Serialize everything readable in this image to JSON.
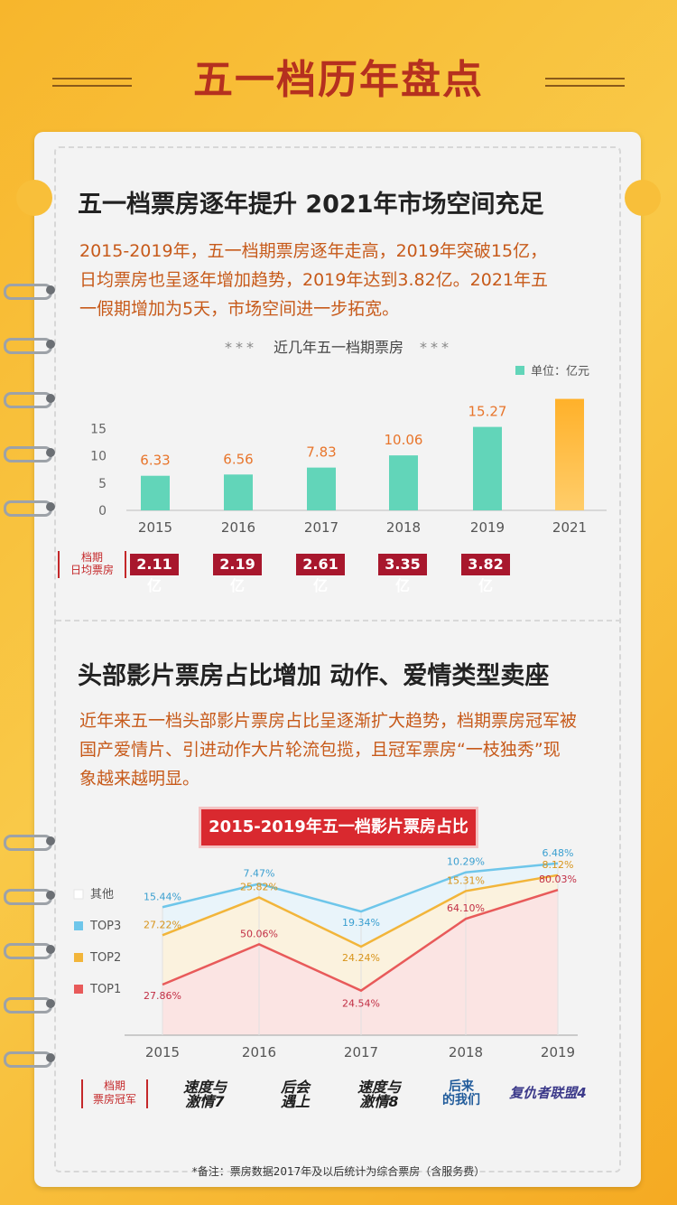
{
  "header": {
    "title": "五一档历年盘点"
  },
  "section1": {
    "heading": "五一档票房逐年提升  2021年市场空间充足",
    "paragraph": [
      "2015-2019年，五一档期票房逐年走高，2019年突破15亿，",
      "日均票房也呈逐年增加趋势，2019年达到3.82亿。2021年五",
      "一假期增加为5天，市场空间进一步拓宽。"
    ]
  },
  "chart1_title": "近几年五一档期票房",
  "chart1_stars": "***",
  "avg_label_lines": [
    "档期",
    "日均票房"
  ],
  "avg_values": [
    "2.11亿",
    "2.19亿",
    "2.61亿",
    "3.35亿",
    "3.82亿"
  ],
  "section2": {
    "heading": "头部影片票房占比增加 动作、爱情类型卖座",
    "paragraph": [
      "近年来五一档头部影片票房占比呈逐渐扩大趋势，档期票房冠军被",
      "国产爱情片、引进动作大片轮流包揽，且冠军票房“一枝独秀”现",
      "象越来越明显。"
    ]
  },
  "chart2_pill": "2015-2019年五一档影片票房占比",
  "champ_label_lines": [
    "档期",
    "票房冠军"
  ],
  "champions": [
    {
      "lines": [
        "速度与",
        "激情7"
      ],
      "style": "italic"
    },
    {
      "lines": [
        "后会",
        "遇上"
      ],
      "style": "italic"
    },
    {
      "lines": [
        "速度与",
        "激情8"
      ],
      "style": "italic"
    },
    {
      "lines": [
        "后来",
        "的我们"
      ],
      "style": "vert"
    },
    {
      "lines": [
        "复仇者联盟4"
      ],
      "style": "avg"
    }
  ],
  "footnote": "*备注：票房数据2017年及以后统计为综合票房（含服务费）",
  "colors": {
    "bar": "#62d5b9",
    "bar_2021": "#ffb433",
    "bar_label": "#e8752b",
    "top1": "#e85a5a",
    "top2": "#f2b53a",
    "top3": "#6ec6ea",
    "other": "#ffffff",
    "title": "#b5301f",
    "accent_red": "#c4282a"
  },
  "chart_data": [
    {
      "type": "bar",
      "title": "近几年五一档期票房",
      "categories": [
        "2015",
        "2016",
        "2017",
        "2018",
        "2019",
        "2021"
      ],
      "values": [
        6.33,
        6.56,
        7.83,
        10.06,
        15.27,
        null
      ],
      "value_labels": [
        "6.33",
        "6.56",
        "7.83",
        "10.06",
        "15.27",
        ""
      ],
      "legend": "单位：亿元",
      "legend_position": "top-right",
      "ylim": [
        0,
        20
      ],
      "yticks": [
        "0",
        "5",
        "10",
        "15"
      ],
      "grid": false
    },
    {
      "type": "area",
      "title": "2015-2019年五一档影片票房占比",
      "categories": [
        "2015",
        "2016",
        "2017",
        "2018",
        "2019"
      ],
      "legend": [
        "其他",
        "TOP3",
        "TOP2",
        "TOP1"
      ],
      "legend_position": "left",
      "series": [
        {
          "name": "TOP1",
          "values": [
            27.86,
            50.06,
            24.54,
            64.1,
            80.03
          ],
          "labels": [
            "27.86%",
            "50.06%",
            "24.54%",
            "64.10%",
            "80.03%"
          ]
        },
        {
          "name": "TOP2",
          "values": [
            27.22,
            25.82,
            24.24,
            15.31,
            8.12
          ],
          "labels": [
            "27.22%",
            "25.82%",
            "24.24%",
            "15.31%",
            "8.12%"
          ]
        },
        {
          "name": "TOP3",
          "values": [
            15.44,
            7.47,
            19.34,
            10.29,
            6.48
          ],
          "labels": [
            "15.44%",
            "7.47%",
            "19.34%",
            "10.29%",
            "6.48%"
          ]
        }
      ],
      "ylim": [
        0,
        100
      ],
      "stacked": true
    }
  ]
}
